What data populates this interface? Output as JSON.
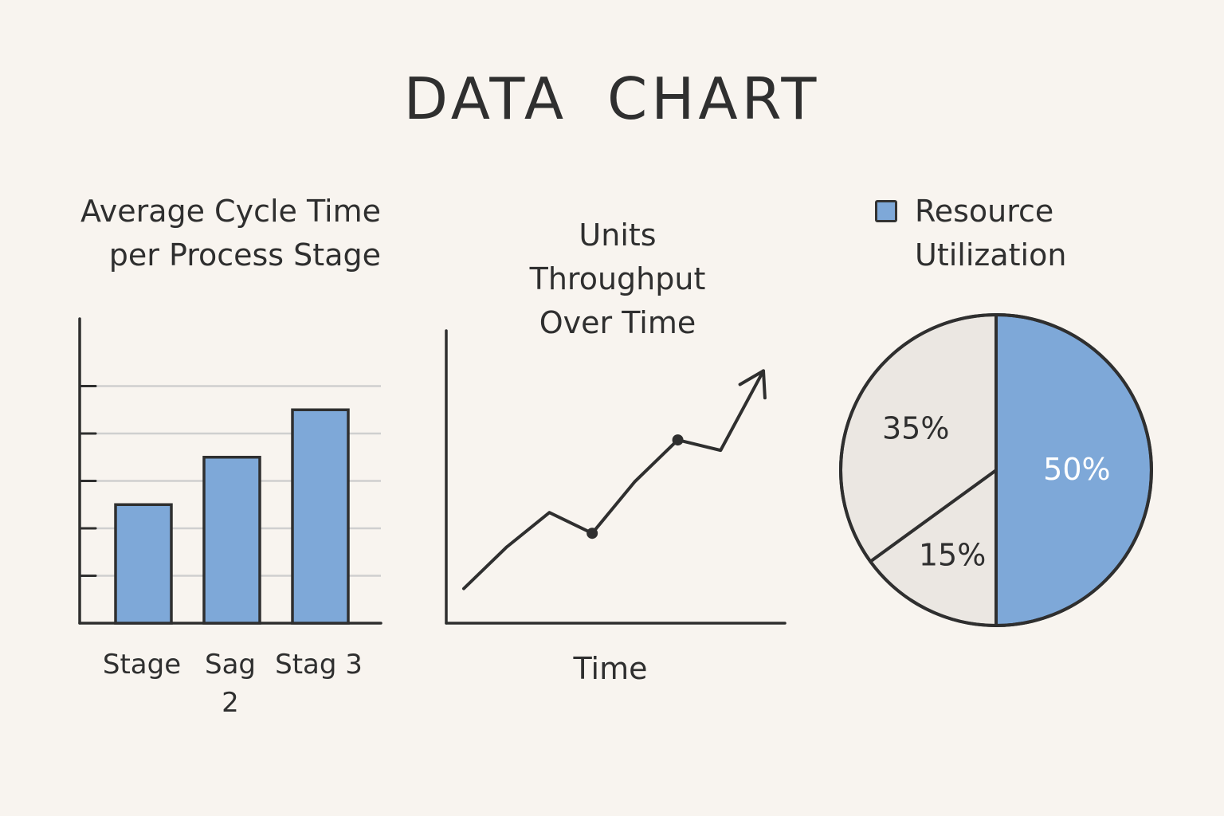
{
  "title": "DATA CHART",
  "colors": {
    "accent": "#7ea8d8",
    "neutral": "#ebe7e2",
    "ink": "#2f2f2f",
    "grid": "#cfcfcf"
  },
  "chart_data": [
    {
      "type": "bar",
      "title": "Average Cycle Time per Process Stage",
      "categories": [
        "Stage",
        "Sag 2",
        "Stag 3"
      ],
      "values": [
        2.5,
        3.5,
        4.5
      ],
      "ylim": [
        0,
        6
      ],
      "grid": true,
      "xlabel": "",
      "ylabel": ""
    },
    {
      "type": "line",
      "title": "Units Throughput Over Time",
      "xlabel": "Time",
      "ylabel": "",
      "x": [
        0,
        1,
        2,
        3,
        4,
        5,
        6,
        7
      ],
      "y": [
        1.0,
        2.2,
        3.2,
        2.6,
        4.1,
        5.3,
        5.0,
        7.3
      ],
      "marked_points": [
        3,
        5
      ],
      "ylim": [
        0,
        8
      ],
      "grid": false,
      "arrow_end": true
    },
    {
      "type": "pie",
      "legend": [
        "Resource Utilization"
      ],
      "slices": [
        {
          "label": "50%",
          "value": 50,
          "color": "#7ea8d8"
        },
        {
          "label": "15%",
          "value": 15,
          "color": "#ebe7e2"
        },
        {
          "label": "35%",
          "value": 35,
          "color": "#ebe7e2"
        }
      ],
      "legend_position": "top"
    }
  ]
}
